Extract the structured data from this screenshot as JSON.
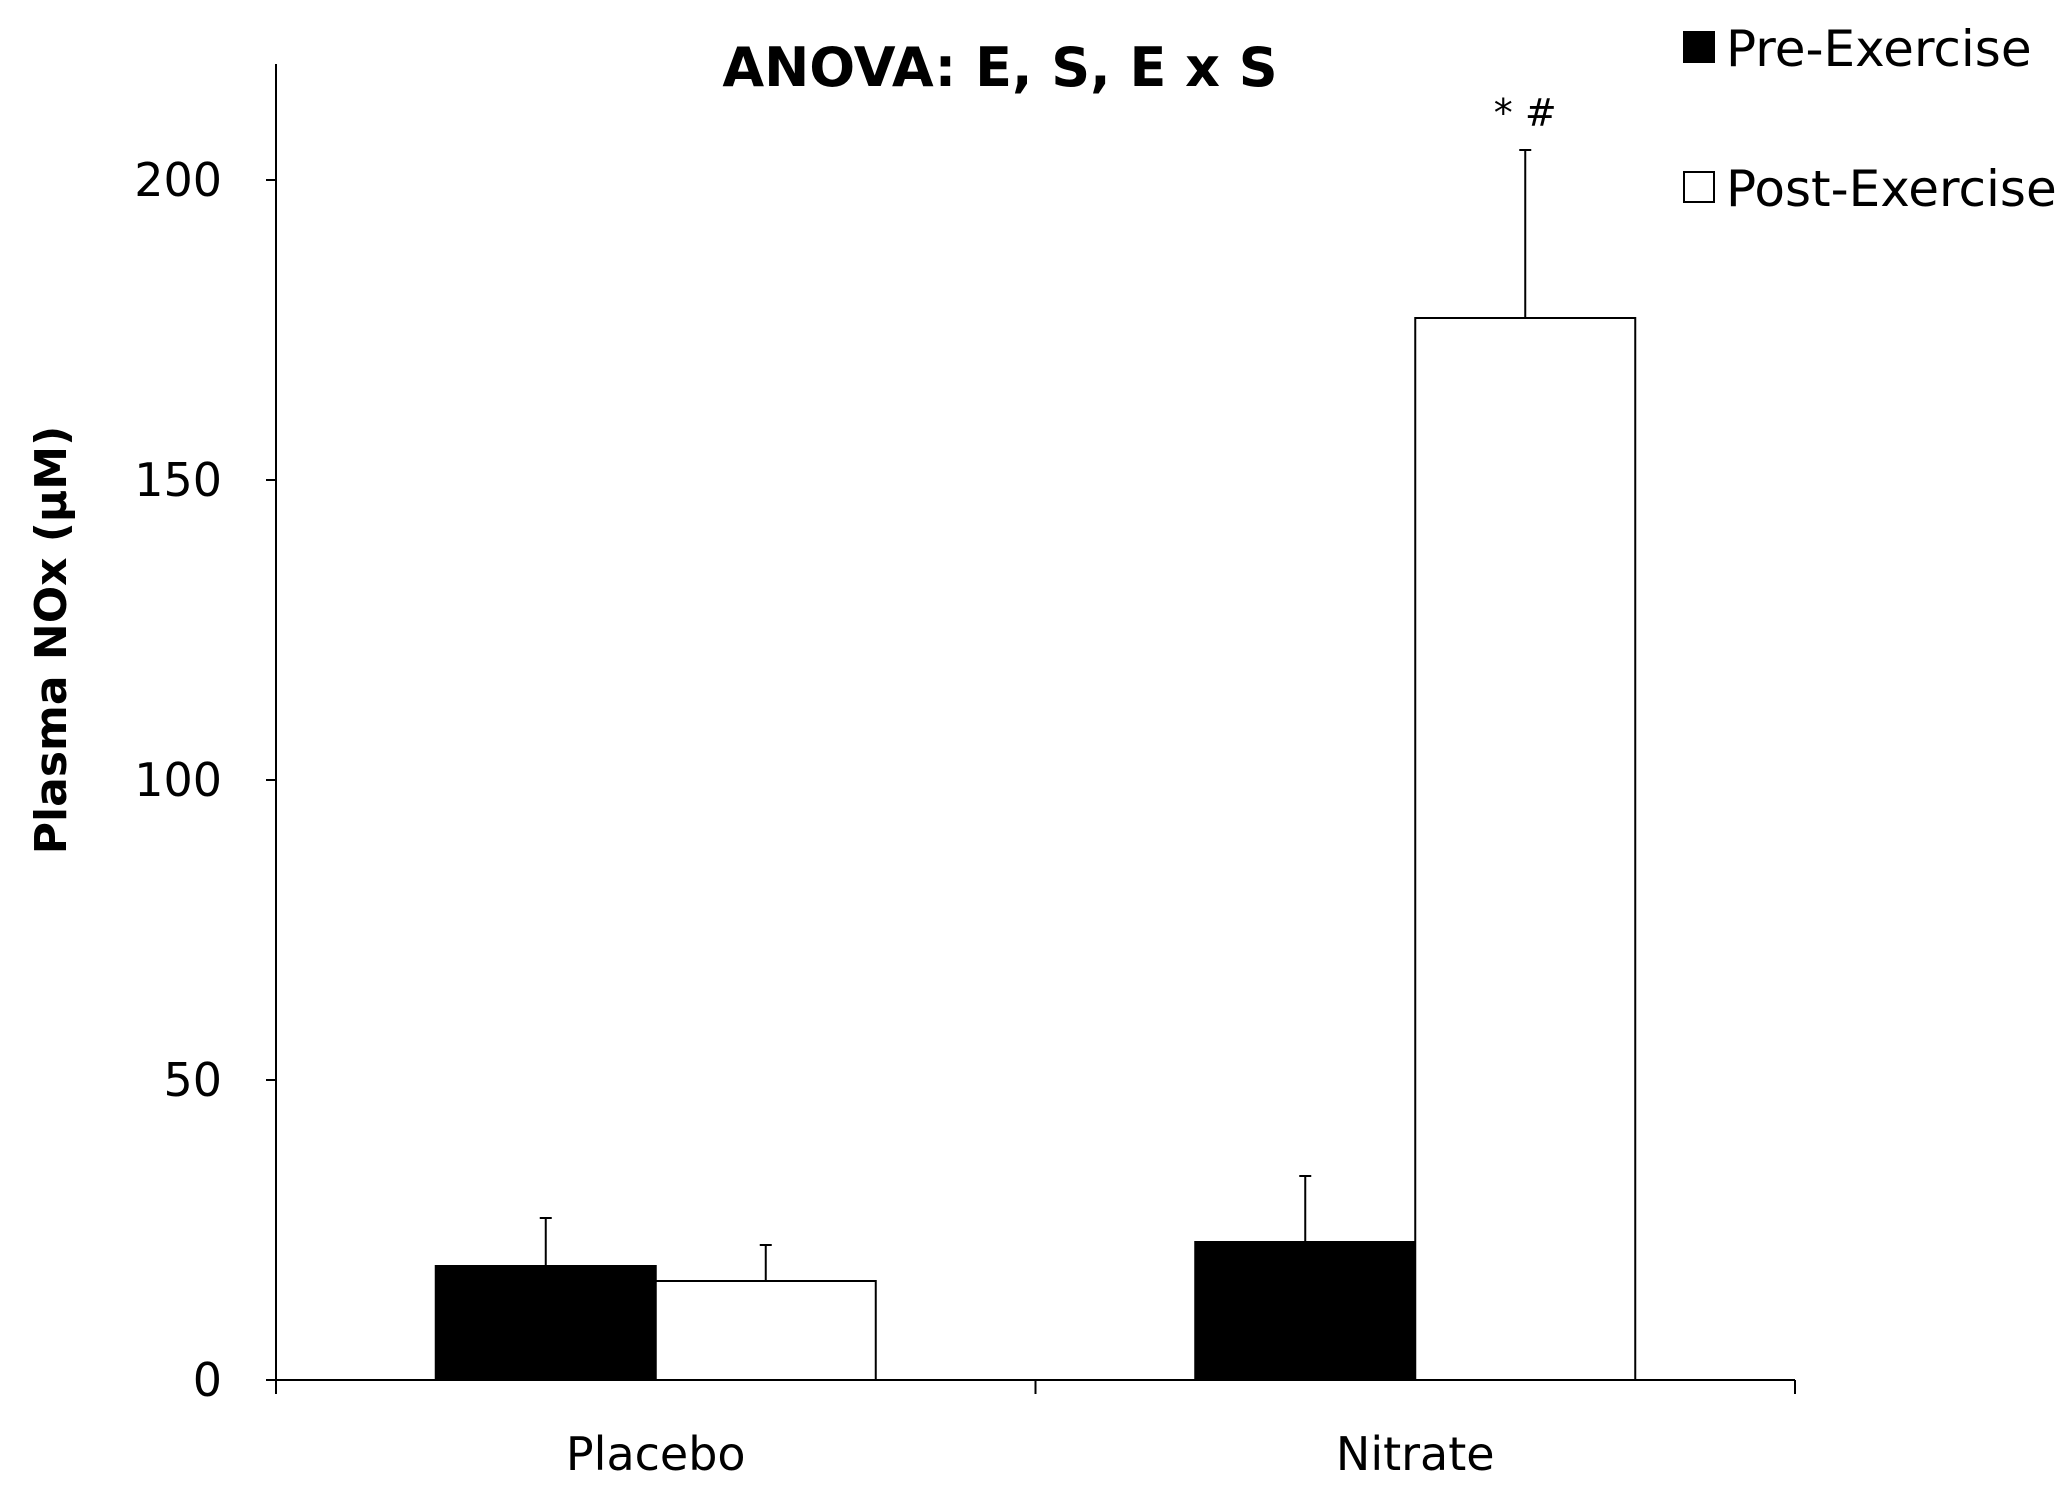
{
  "chart_data": {
    "type": "bar",
    "title": "ANOVA: E, S, E x S",
    "xlabel": "",
    "ylabel": "Plasma NOx (µM)",
    "ylim": [
      0,
      200
    ],
    "yticks": [
      0,
      50,
      100,
      150,
      200
    ],
    "grid": false,
    "legend_position": "top-right",
    "categories": [
      "Placebo",
      "Nitrate"
    ],
    "series": [
      {
        "name": "Pre-Exercise",
        "color": "#000000",
        "values": [
          19,
          23
        ],
        "errors": [
          8,
          11
        ]
      },
      {
        "name": "Post-Exercise",
        "color": "#ffffff",
        "values": [
          16.5,
          177
        ],
        "errors": [
          6,
          28
        ]
      }
    ],
    "annotations": [
      {
        "text": "* #",
        "category": "Nitrate",
        "series": "Post-Exercise"
      }
    ]
  }
}
